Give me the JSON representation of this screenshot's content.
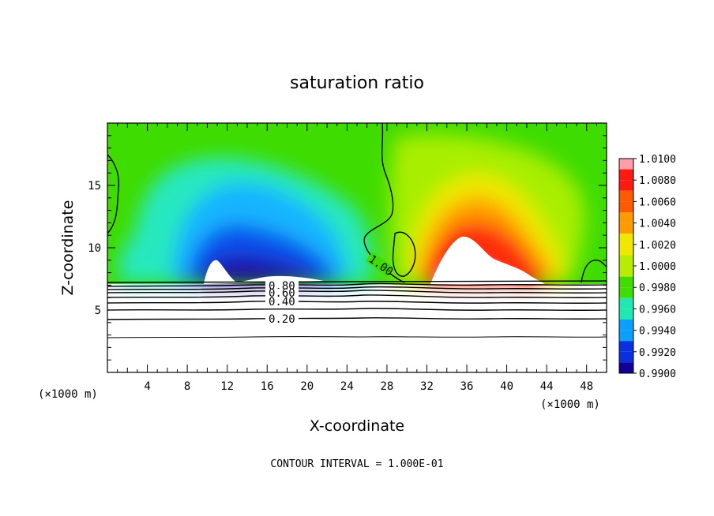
{
  "chart_data": {
    "type": "heatmap",
    "title": "saturation ratio",
    "xlabel": "X-coordinate",
    "ylabel": "Z-coordinate",
    "x_unit_left": "(×1000 m)",
    "x_unit_right": "(×1000 m)",
    "xlim": [
      0,
      50
    ],
    "ylim": [
      0,
      20
    ],
    "x_ticks": [
      4,
      8,
      12,
      16,
      20,
      24,
      28,
      32,
      36,
      40,
      44,
      48
    ],
    "y_ticks": [
      5,
      10,
      15
    ],
    "colorbar": {
      "levels": [
        "1.0100",
        "1.0080",
        "1.0060",
        "1.0040",
        "1.0020",
        "1.0000",
        "0.9980",
        "0.9960",
        "0.9940",
        "0.9920",
        "0.9900"
      ],
      "colors": [
        "#ff9ea6",
        "#ff1a10",
        "#ff5a00",
        "#ff9a00",
        "#f0e800",
        "#b8ec00",
        "#40dd00",
        "#20e8b0",
        "#0aa0ff",
        "#0830e0",
        "#100098",
        "#80009a"
      ]
    },
    "contour_labels": [
      "1.00",
      "0.80",
      "0.60",
      "0.40",
      "0.20"
    ],
    "contour_interval_text": "CONTOUR INTERVAL = 1.000E-01"
  }
}
